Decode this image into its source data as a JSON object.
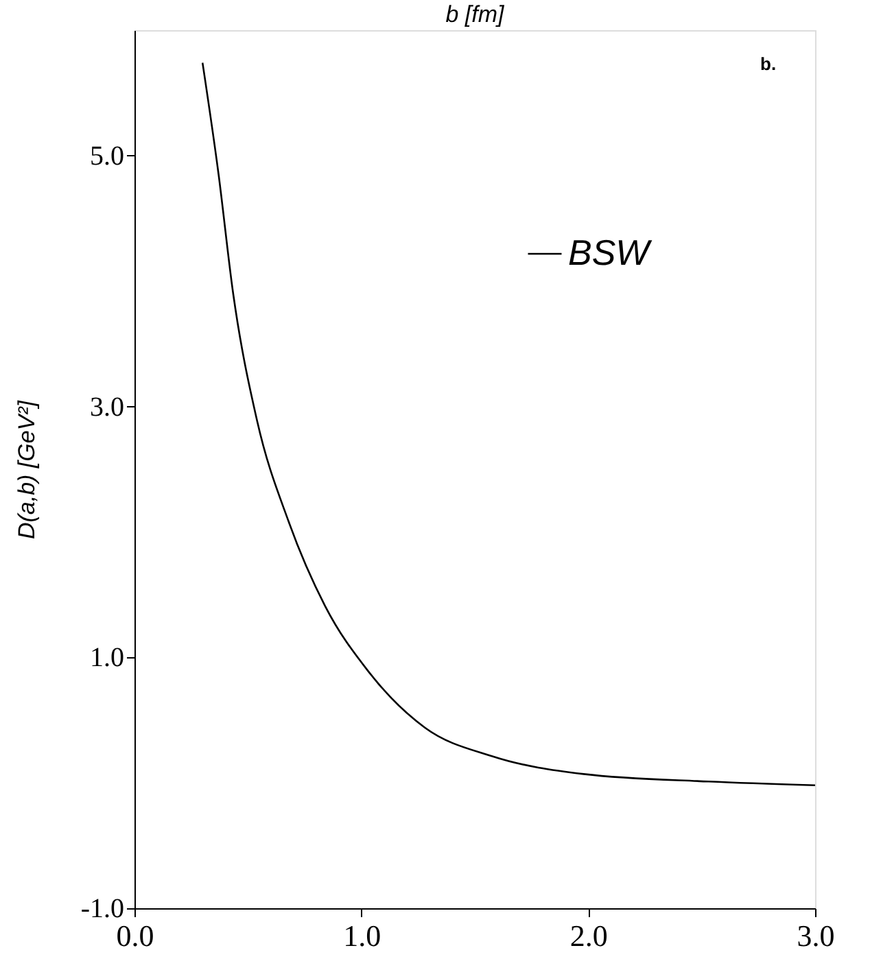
{
  "chart_data": {
    "type": "line",
    "xlabel": "b [fm]",
    "ylabel": "D(a,b) [GeV²]",
    "annotations": [
      "b."
    ],
    "x": [
      0.3,
      0.37,
      0.435,
      0.54,
      0.68,
      0.84,
      1.03,
      1.28,
      1.58,
      1.98,
      2.53,
      3.0
    ],
    "series": [
      {
        "name": "BSW",
        "color": "#000000",
        "values": [
          5.74,
          4.86,
          3.9,
          2.89,
          2.08,
          1.41,
          0.89,
          0.44,
          0.21,
          0.07,
          0.01,
          -0.02
        ]
      }
    ],
    "xlim": [
      0,
      3
    ],
    "ylim": [
      -1,
      6
    ],
    "xticks": [
      {
        "value": 0,
        "label": "0.0"
      },
      {
        "value": 1,
        "label": "1.0"
      },
      {
        "value": 2,
        "label": "2.0"
      },
      {
        "value": 3,
        "label": "3.0"
      }
    ],
    "yticks": [
      {
        "value": -1,
        "label": "-1.0"
      },
      {
        "value": 1,
        "label": "1.0"
      },
      {
        "value": 3,
        "label": "3.0"
      },
      {
        "value": 5,
        "label": "5.0"
      }
    ],
    "grid": false,
    "legend": "top right",
    "marker": "none",
    "line_style": "solid"
  }
}
